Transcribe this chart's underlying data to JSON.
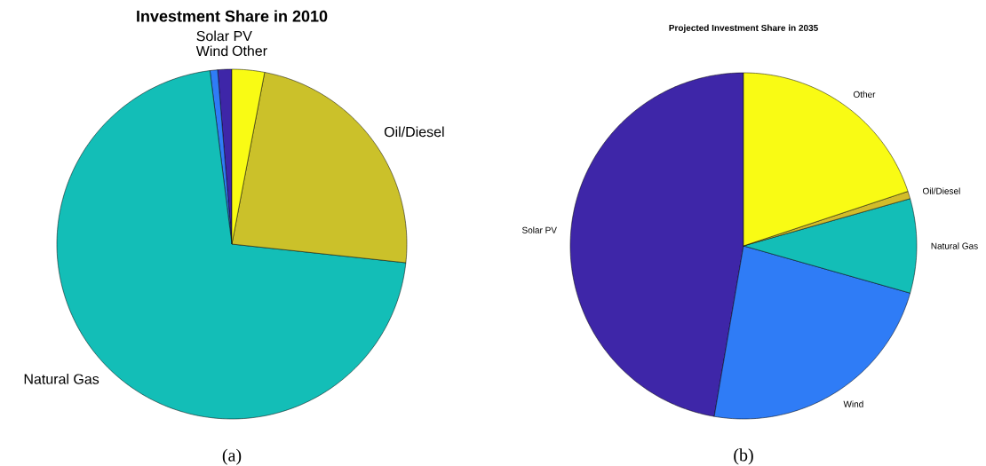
{
  "chart_data": [
    {
      "type": "pie",
      "title": "Investment Share in 2010",
      "categories": [
        "Solar PV",
        "Wind",
        "Natural Gas",
        "Oil/Diesel",
        "Other"
      ],
      "values": [
        1.3,
        0.7,
        71.3,
        23.7,
        3.0
      ],
      "colors": [
        "#3e26a8",
        "#2f7cf6",
        "#13beb7",
        "#cbc12a",
        "#f9fb14"
      ],
      "annotations": [
        "(a)"
      ]
    },
    {
      "type": "pie",
      "title": "Projected Investment Share in 2035",
      "categories": [
        "Solar PV",
        "Wind",
        "Natural Gas",
        "Oil/Diesel",
        "Other"
      ],
      "values": [
        47.3,
        23.3,
        8.8,
        0.7,
        19.9
      ],
      "colors": [
        "#3e26a8",
        "#2f7cf6",
        "#13beb7",
        "#d2bc2a",
        "#f9fb14"
      ],
      "annotations": [
        "(b)"
      ]
    }
  ]
}
